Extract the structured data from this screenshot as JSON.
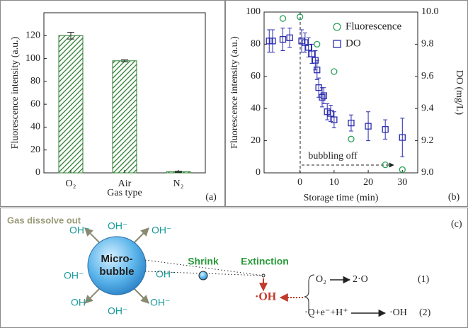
{
  "chart_data": [
    {
      "type": "bar",
      "panel_label": "(a)",
      "xlabel": "Gas type",
      "ylabel": "Fluorescence intensity (a.u.)",
      "categories": [
        "O₂",
        "Air",
        "N₂"
      ],
      "values": [
        120,
        98,
        1
      ],
      "errors": [
        3,
        0.8,
        0.5
      ],
      "color": "#2e7d32",
      "ylim": [
        0,
        140
      ],
      "yticks": [
        0,
        20,
        40,
        60,
        80,
        100,
        120
      ]
    },
    {
      "type": "scatter",
      "panel_label": "(b)",
      "xlabel": "Storage time (min)",
      "ylabel": "Fluorescence intensity (a.u.)",
      "y2label": "DO (mg/L)",
      "annotation": "bubbling off",
      "legend": "upper right",
      "xlim": [
        -10.5,
        34.5
      ],
      "xticks": [
        0,
        10,
        20,
        30
      ],
      "ylim": [
        0,
        100
      ],
      "yticks": [
        0,
        20,
        40,
        60,
        80,
        100
      ],
      "y2lim": [
        9,
        10
      ],
      "y2ticks": [
        {
          "value": 9,
          "label": "9.0"
        },
        9.2,
        9.4,
        9.6,
        9.8,
        {
          "value": 10,
          "label": "10.0"
        }
      ],
      "series": [
        {
          "name": "Fluorescence",
          "color": "#2ca05a",
          "marker": "circle",
          "x": [
            -5,
            0,
            5,
            10,
            15,
            25,
            30
          ],
          "values": [
            96,
            97,
            80,
            63,
            21,
            5,
            2
          ]
        },
        {
          "name": "DO",
          "color": "#2b2bb0",
          "marker": "square",
          "axis": "y2",
          "x": [
            -9,
            -8,
            -5,
            -3,
            0.5,
            1.5,
            2.5,
            3.5,
            4.5,
            5,
            5.5,
            6.5,
            7,
            8,
            9,
            10,
            15,
            20,
            25,
            30
          ],
          "values": [
            9.82,
            9.82,
            9.83,
            9.84,
            9.82,
            9.81,
            9.78,
            9.74,
            9.7,
            9.64,
            9.53,
            9.47,
            9.48,
            9.38,
            9.37,
            9.33,
            9.31,
            9.29,
            9.27,
            9.22
          ],
          "errors": [
            0.07,
            0.07,
            0.07,
            0.06,
            0.07,
            0.06,
            0.06,
            0.06,
            0.06,
            0.06,
            0.06,
            0.06,
            0.05,
            0.05,
            0.05,
            0.05,
            0.05,
            0.09,
            0.06,
            0.12
          ]
        }
      ]
    }
  ],
  "diagram": {
    "panel_label": "(c)",
    "title": "Gas dissolve out",
    "ions": [
      "OH⁻",
      "OH⁻",
      "OH⁻",
      "OH⁻",
      "OH⁻",
      "OH⁻",
      "OH⁻",
      "OH⁻"
    ],
    "bubble": [
      "Micro-",
      "bubble"
    ],
    "shrink": "Shrink",
    "extinction": "Extinction",
    "radical": "·OH",
    "reaction1": {
      "left": "O₂",
      "right": "2·O",
      "number": "(1)"
    },
    "reaction2": {
      "left": "·O+e⁻+H⁺",
      "right": "·OH",
      "number": "(2)"
    }
  }
}
